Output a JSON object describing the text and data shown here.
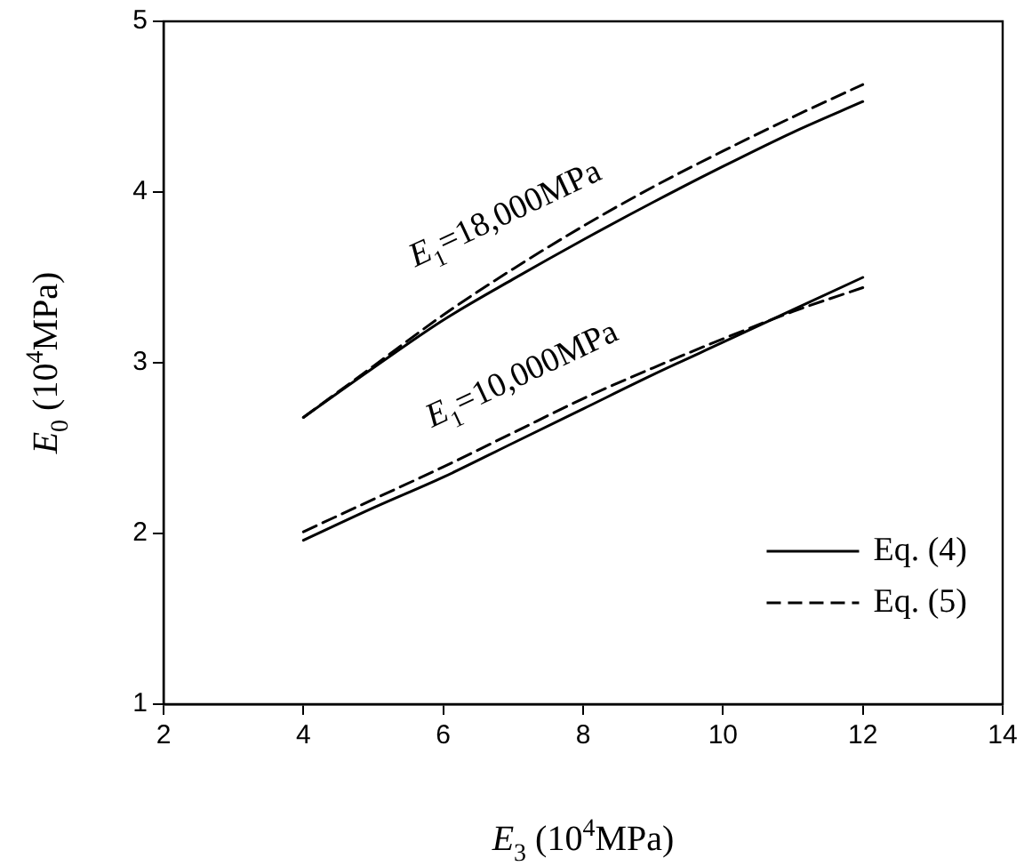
{
  "chart_data": {
    "type": "line",
    "xlabel": "E$_{3}$ (10$^{4}$MPa)",
    "ylabel": "E$_{0}$ (10$^{4}$MPa)",
    "x": [
      4,
      5,
      6,
      7,
      8,
      9,
      10,
      11,
      12
    ],
    "series": [
      {
        "name": "Eq. (4)",
        "color": "#000000",
        "line_style": "solid",
        "values": [
          2.68,
          2.97,
          3.25,
          3.49,
          3.72,
          3.94,
          4.15,
          4.35,
          4.53
        ]
      },
      {
        "name": "Eq. (5)",
        "color": "#000000",
        "line_style": "dashed",
        "values": [
          2.68,
          2.98,
          3.28,
          3.55,
          3.8,
          4.03,
          4.24,
          4.44,
          4.63
        ]
      },
      {
        "color": "#000000",
        "line_style": "solid",
        "values": [
          1.96,
          2.15,
          2.33,
          2.53,
          2.73,
          2.93,
          3.12,
          3.31,
          3.5
        ]
      },
      {
        "color": "#000000",
        "line_style": "dashed",
        "values": [
          2.01,
          2.2,
          2.39,
          2.59,
          2.79,
          2.97,
          3.14,
          3.3,
          3.44
        ]
      }
    ],
    "xlim": [
      2,
      14
    ],
    "xticks": [
      2,
      4,
      6,
      8,
      10,
      12,
      14
    ],
    "ylim": [
      1,
      5
    ],
    "yticks": [
      1,
      2,
      3,
      4,
      5
    ],
    "grid": false,
    "legend": "bottom right",
    "marker": "none",
    "annotations": [
      "E$_{1}$=18,000MPa",
      "E$_{1}$=10,000MPa"
    ]
  }
}
